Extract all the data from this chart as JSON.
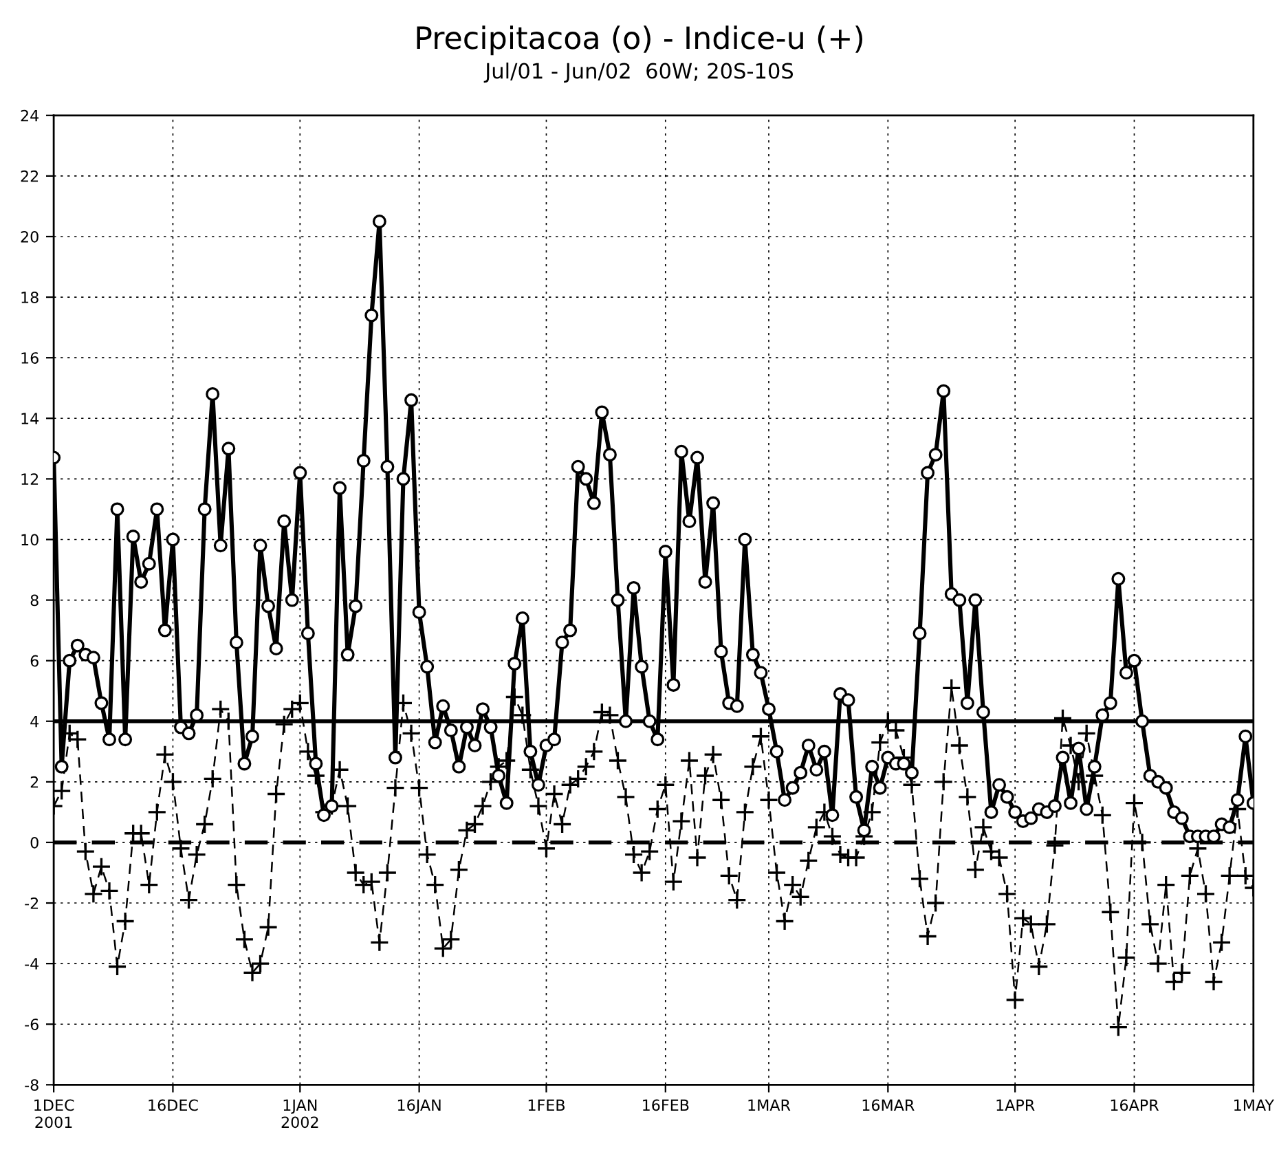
{
  "chart_data": {
    "type": "line",
    "title": "Precipitacoa (o) - Indice-u (+)",
    "subtitle": "Jul/01 - Jun/02  60W; 20S-10S",
    "x": [
      "2001-12-01",
      "2001-12-02",
      "2001-12-03",
      "2001-12-04",
      "2001-12-05",
      "2001-12-06",
      "2001-12-07",
      "2001-12-08",
      "2001-12-09",
      "2001-12-10",
      "2001-12-11",
      "2001-12-12",
      "2001-12-13",
      "2001-12-14",
      "2001-12-15",
      "2001-12-16",
      "2001-12-17",
      "2001-12-18",
      "2001-12-19",
      "2001-12-20",
      "2001-12-21",
      "2001-12-22",
      "2001-12-23",
      "2001-12-24",
      "2001-12-25",
      "2001-12-26",
      "2001-12-27",
      "2001-12-28",
      "2001-12-29",
      "2001-12-30",
      "2001-12-31",
      "2002-01-01",
      "2002-01-02",
      "2002-01-03",
      "2002-01-04",
      "2002-01-05",
      "2002-01-06",
      "2002-01-07",
      "2002-01-08",
      "2002-01-09",
      "2002-01-10",
      "2002-01-11",
      "2002-01-12",
      "2002-01-13",
      "2002-01-14",
      "2002-01-15",
      "2002-01-16",
      "2002-01-17",
      "2002-01-18",
      "2002-01-19",
      "2002-01-20",
      "2002-01-21",
      "2002-01-22",
      "2002-01-23",
      "2002-01-24",
      "2002-01-25",
      "2002-01-26",
      "2002-01-27",
      "2002-01-28",
      "2002-01-29",
      "2002-01-30",
      "2002-01-31",
      "2002-02-01",
      "2002-02-02",
      "2002-02-03",
      "2002-02-04",
      "2002-02-05",
      "2002-02-06",
      "2002-02-07",
      "2002-02-08",
      "2002-02-09",
      "2002-02-10",
      "2002-02-11",
      "2002-02-12",
      "2002-02-13",
      "2002-02-14",
      "2002-02-15",
      "2002-02-16",
      "2002-02-17",
      "2002-02-18",
      "2002-02-19",
      "2002-02-20",
      "2002-02-21",
      "2002-02-22",
      "2002-02-23",
      "2002-02-24",
      "2002-02-25",
      "2002-02-26",
      "2002-02-27",
      "2002-02-28",
      "2002-03-01",
      "2002-03-02",
      "2002-03-03",
      "2002-03-04",
      "2002-03-05",
      "2002-03-06",
      "2002-03-07",
      "2002-03-08",
      "2002-03-09",
      "2002-03-10",
      "2002-03-11",
      "2002-03-12",
      "2002-03-13",
      "2002-03-14",
      "2002-03-15",
      "2002-03-16",
      "2002-03-17",
      "2002-03-18",
      "2002-03-19",
      "2002-03-20",
      "2002-03-21",
      "2002-03-22",
      "2002-03-23",
      "2002-03-24",
      "2002-03-25",
      "2002-03-26",
      "2002-03-27",
      "2002-03-28",
      "2002-03-29",
      "2002-03-30",
      "2002-03-31",
      "2002-04-01",
      "2002-04-02",
      "2002-04-03",
      "2002-04-04",
      "2002-04-05",
      "2002-04-06",
      "2002-04-07",
      "2002-04-08",
      "2002-04-09",
      "2002-04-10",
      "2002-04-11",
      "2002-04-12",
      "2002-04-13",
      "2002-04-14",
      "2002-04-15",
      "2002-04-16",
      "2002-04-17",
      "2002-04-18",
      "2002-04-19",
      "2002-04-20",
      "2002-04-21",
      "2002-04-22",
      "2002-04-23",
      "2002-04-24",
      "2002-04-25",
      "2002-04-26",
      "2002-04-27",
      "2002-04-28",
      "2002-04-29",
      "2002-04-30",
      "2002-05-01"
    ],
    "series": [
      {
        "color": "#000000",
        "marker": "circle",
        "line_style": "solid",
        "values": [
          12.7,
          2.5,
          6.0,
          6.5,
          6.2,
          6.1,
          4.6,
          3.4,
          11.0,
          3.4,
          10.1,
          8.6,
          9.2,
          11.0,
          7.0,
          10.0,
          3.8,
          3.6,
          4.2,
          11.0,
          14.8,
          9.8,
          13.0,
          6.6,
          2.6,
          3.5,
          9.8,
          7.8,
          6.4,
          10.6,
          8.0,
          12.2,
          6.9,
          2.6,
          0.9,
          1.2,
          11.7,
          6.2,
          7.8,
          12.6,
          17.4,
          20.5,
          12.4,
          2.8,
          12.0,
          14.6,
          7.6,
          5.8,
          3.3,
          4.5,
          3.7,
          2.5,
          3.8,
          3.2,
          4.4,
          3.8,
          2.2,
          1.3,
          5.9,
          7.4,
          3.0,
          1.9,
          3.2,
          3.4,
          6.6,
          7.0,
          12.4,
          12.0,
          11.2,
          14.2,
          12.8,
          8.0,
          4.0,
          8.4,
          5.8,
          4.0,
          3.4,
          9.6,
          5.2,
          12.9,
          10.6,
          12.7,
          8.6,
          11.2,
          6.3,
          4.6,
          4.5,
          10.0,
          6.2,
          5.6,
          4.4,
          3.0,
          1.4,
          1.8,
          2.3,
          3.2,
          2.4,
          3.0,
          0.9,
          4.9,
          4.7,
          1.5,
          0.4,
          2.5,
          1.8,
          2.8,
          2.6,
          2.6,
          2.3,
          6.9,
          12.2,
          12.8,
          14.9,
          8.2,
          8.0,
          4.6,
          8.0,
          4.3,
          1.0,
          1.9,
          1.5,
          1.0,
          0.7,
          0.8,
          1.1,
          1.0,
          1.2,
          2.8,
          1.3,
          3.1,
          1.1,
          2.5,
          4.2,
          4.6,
          8.7,
          5.6,
          6.0,
          4.0,
          2.2,
          2.0,
          1.8,
          1.0,
          0.8,
          0.2,
          0.2,
          0.2,
          0.2,
          0.6,
          0.5,
          1.4,
          3.5,
          1.3
        ]
      },
      {
        "color": "#000000",
        "marker": "cross",
        "line_style": "dashed",
        "values": [
          1.2,
          1.7,
          3.6,
          3.4,
          -0.3,
          -1.7,
          -0.8,
          -1.6,
          -4.1,
          -2.6,
          0.3,
          0.3,
          -1.4,
          1.0,
          2.9,
          2.0,
          -0.2,
          -1.9,
          -0.4,
          0.6,
          2.1,
          4.4,
          4.0,
          -1.4,
          -3.2,
          -4.3,
          -4.0,
          -2.8,
          1.6,
          3.9,
          4.4,
          4.6,
          3.0,
          2.2,
          1.0,
          1.2,
          2.4,
          1.2,
          -1.0,
          -1.4,
          -1.3,
          -3.3,
          -1.0,
          1.8,
          4.6,
          3.6,
          1.8,
          -0.4,
          -1.4,
          -3.5,
          -3.2,
          -0.9,
          0.4,
          0.6,
          1.2,
          2.0,
          2.5,
          2.7,
          4.8,
          4.2,
          2.4,
          1.2,
          -0.2,
          1.6,
          0.6,
          1.9,
          2.1,
          2.5,
          3.0,
          4.3,
          4.2,
          2.7,
          1.5,
          -0.4,
          -1.0,
          -0.3,
          1.1,
          1.9,
          -1.3,
          0.7,
          2.7,
          -0.5,
          2.2,
          2.9,
          1.4,
          -1.1,
          -1.9,
          1.0,
          2.5,
          3.5,
          1.4,
          -1.0,
          -2.6,
          -1.4,
          -1.8,
          -0.6,
          0.5,
          1.0,
          0.2,
          -0.4,
          -0.5,
          -0.5,
          0.2,
          1.0,
          3.3,
          4.0,
          3.7,
          2.8,
          1.9,
          -1.2,
          -3.1,
          -2.0,
          2.0,
          5.1,
          3.2,
          1.5,
          -0.9,
          0.5,
          -0.3,
          -0.5,
          -1.7,
          -5.2,
          -2.5,
          -2.7,
          -4.1,
          -2.7,
          -0.1,
          4.1,
          3.2,
          2.0,
          3.6,
          2.2,
          0.9,
          -2.3,
          -6.1,
          -3.8,
          1.3,
          0.0,
          -2.7,
          -4.0,
          -1.4,
          -4.6,
          -4.3,
          -1.1,
          -0.2,
          -1.7,
          -4.6,
          -3.3,
          -1.1,
          1.1,
          -1.1,
          -1.5
        ]
      }
    ],
    "xlim": [
      "2001-12-01",
      "2002-05-01"
    ],
    "xticks": [
      {
        "value": "2001-12-01",
        "label": "1DEC\n2001"
      },
      {
        "value": "2001-12-16",
        "label": "16DEC"
      },
      {
        "value": "2002-01-01",
        "label": "1JAN\n2002"
      },
      {
        "value": "2002-01-16",
        "label": "16JAN"
      },
      {
        "value": "2002-02-01",
        "label": "1FEB"
      },
      {
        "value": "2002-02-16",
        "label": "16FEB"
      },
      {
        "value": "2002-03-01",
        "label": "1MAR"
      },
      {
        "value": "2002-03-16",
        "label": "16MAR"
      },
      {
        "value": "2002-04-01",
        "label": "1APR"
      },
      {
        "value": "2002-04-16",
        "label": "16APR"
      },
      {
        "value": "2002-05-01",
        "label": "1MAY"
      }
    ],
    "ylim": [
      -8,
      24
    ],
    "yticks": [
      -8,
      -6,
      -4,
      -2,
      0,
      2,
      4,
      6,
      8,
      10,
      12,
      14,
      16,
      18,
      20,
      22,
      24
    ],
    "ref_lines": [
      {
        "axis": "y",
        "value": 4,
        "color": "#000000",
        "line_style": "solid"
      },
      {
        "axis": "y",
        "value": 0,
        "color": "#000000",
        "line_style": "dashed"
      }
    ],
    "grid": true
  }
}
